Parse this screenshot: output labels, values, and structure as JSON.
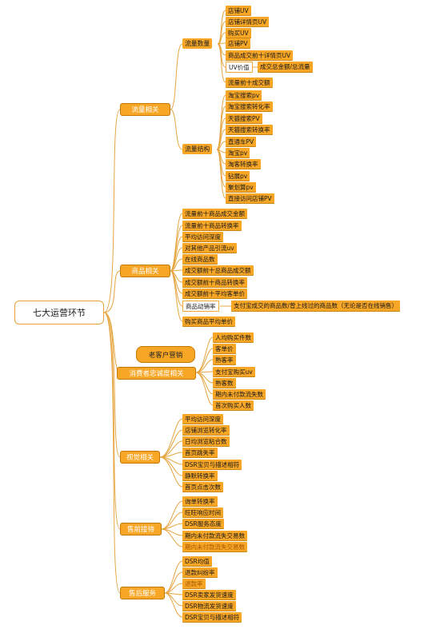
{
  "root": "七大运营环节",
  "callout": "老客户营销",
  "branches": [
    {
      "label": "流量相关",
      "groups": [
        {
          "label": "流量数量",
          "items": [
            "店铺UV",
            "店铺详情页UV",
            "购买UV",
            "店铺PV",
            "商品成交前十详情页UV",
            "UV价值",
            "流量前十成交额"
          ],
          "sub": {
            "parent": "UV价值",
            "label": "成交总金额/总流量"
          }
        },
        {
          "label": "流量结构",
          "items": [
            "淘宝搜索pv",
            "淘宝搜索转化率",
            "天猫搜索PV",
            "天猫搜索转换率",
            "直通车PV",
            "淘宝pv",
            "淘客转换率",
            "钻展pv",
            "聚划算pv",
            "直接访问店铺PV"
          ]
        }
      ]
    },
    {
      "label": "商品相关",
      "items": [
        "流量前十商品成交金额",
        "流量前十商品转换率",
        "平均访问深度",
        "对其他产品引流uv",
        "在线商品数",
        "成交额前十总商品成交额",
        "成交额前十商品转换率",
        "成交额前十平均客单价",
        "商品动销率",
        "购买商品平均单价"
      ],
      "sub": {
        "parent": "商品动销率",
        "label": "支付宝成交的商品数/曾上线过的商品数（无论是否在线销售）"
      }
    },
    {
      "label": "消费者忠诚度相关",
      "items": [
        "人均购买件数",
        "客单价",
        "熟客率",
        "支付宝购买uv",
        "熟客数",
        "期内未付款流失数",
        "首次购买人数"
      ]
    },
    {
      "label": "视觉相关",
      "items": [
        "平均访问深度",
        "店铺浏览转化率",
        "日均浏览粘合数",
        "首页跳失率",
        "DSR宝贝与描述相符",
        "静默转换率",
        "首页点击次数"
      ]
    },
    {
      "label": "售前接待",
      "items": [
        "询单转换率",
        "旺旺响应时间",
        "DSR服务态度",
        "期内未付款流失交易数",
        "期内未付款流失交易数"
      ]
    },
    {
      "label": "售后服务",
      "items": [
        "DSR均值",
        "退款纠纷率",
        "退款率",
        "DSR卖家发货速度",
        "DSR物流发货速度",
        "DSR宝贝与描述相符"
      ]
    }
  ]
}
